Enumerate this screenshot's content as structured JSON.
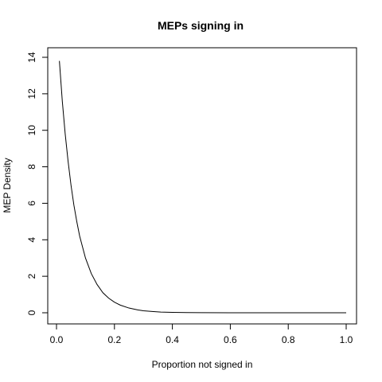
{
  "chart_data": {
    "type": "line",
    "title": "MEPs signing in",
    "xlabel": "Proportion not signed in",
    "ylabel": "MEP Density",
    "xlim": [
      0.0,
      1.0
    ],
    "ylim": [
      0,
      14
    ],
    "x_ticks": [
      "0.0",
      "0.2",
      "0.4",
      "0.6",
      "0.8",
      "1.0"
    ],
    "y_ticks": [
      "0",
      "2",
      "4",
      "6",
      "8",
      "10",
      "12",
      "14"
    ],
    "grid": false,
    "series": [
      {
        "color": "#000000",
        "x": [
          0.01,
          0.02,
          0.03,
          0.04,
          0.05,
          0.06,
          0.07,
          0.08,
          0.09,
          0.1,
          0.12,
          0.14,
          0.16,
          0.18,
          0.2,
          0.22,
          0.25,
          0.28,
          0.3,
          0.33,
          0.36,
          0.4,
          0.45,
          0.5,
          0.6,
          0.7,
          0.8,
          0.9,
          1.0
        ],
        "y": [
          13.8,
          11.6,
          9.8,
          8.3,
          7.0,
          5.9,
          5.0,
          4.2,
          3.6,
          3.0,
          2.15,
          1.55,
          1.1,
          0.8,
          0.58,
          0.42,
          0.26,
          0.16,
          0.11,
          0.07,
          0.04,
          0.02,
          0.01,
          0.005,
          0.002,
          0.001,
          0.0,
          0.0,
          0.0
        ]
      }
    ]
  }
}
